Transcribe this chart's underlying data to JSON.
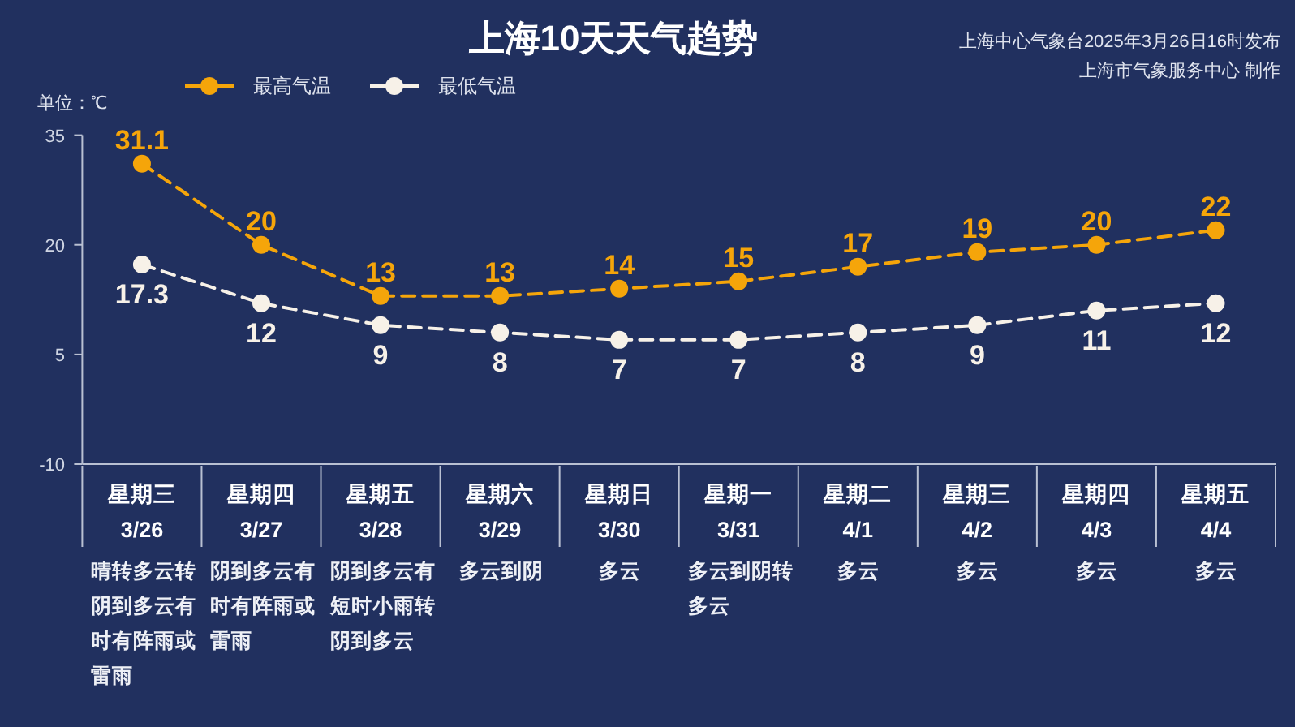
{
  "chart_data": {
    "type": "line",
    "title": "上海10天天气趋势",
    "ylabel": "单位：℃",
    "categories": [
      "星期三\n3/26",
      "星期四\n3/27",
      "星期五\n3/28",
      "星期六\n3/29",
      "星期日\n3/30",
      "星期一\n3/31",
      "星期二\n4/1",
      "星期三\n4/2",
      "星期四\n4/3",
      "星期五\n4/4"
    ],
    "series": [
      {
        "name": "最高气温",
        "color": "#f5a50a",
        "values": [
          31.1,
          20,
          13,
          13,
          14,
          15,
          17,
          19,
          20,
          22
        ]
      },
      {
        "name": "最低气温",
        "color": "#f7f1e8",
        "values": [
          17.3,
          12,
          9,
          8,
          7,
          7,
          8,
          9,
          11,
          12
        ]
      }
    ],
    "ylim": [
      -10,
      35
    ],
    "yticks": [
      -10,
      5,
      20,
      35
    ],
    "legend": "top",
    "marker": "circle",
    "line_style": "dashed",
    "data_labels": true,
    "annotations": [
      "上海中心气象台2025年3月26日16时发布",
      "上海市气象服务中心 制作",
      "晴转多云转阴到多云有时有阵雨或雷雨",
      "阴到多云有时有阵雨或雷雨",
      "阴到多云有短时小雨转阴到多云",
      "多云到阴",
      "多云",
      "多云到阴转多云",
      "多云",
      "多云",
      "多云",
      "多云"
    ]
  }
}
